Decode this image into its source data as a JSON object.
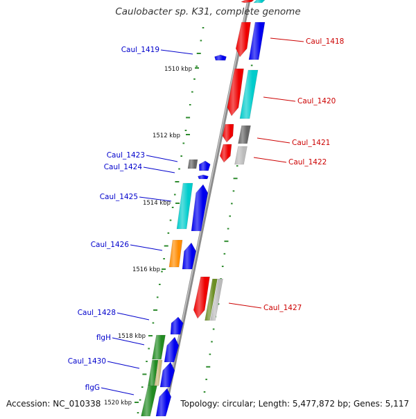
{
  "title": "Caulobacter sp. K31, complete genome",
  "accession": "Accession: NC_010338",
  "summary": "Topology: circular; Length: 5,477,872 bp; Genes: 5,117",
  "kbp_labels": [
    {
      "text": "1510 kbp",
      "kbp": 1510
    },
    {
      "text": "1512 kbp",
      "kbp": 1512
    },
    {
      "text": "1514 kbp",
      "kbp": 1514
    },
    {
      "text": "1516 kbp",
      "kbp": 1516
    },
    {
      "text": "1518 kbp",
      "kbp": 1518
    },
    {
      "text": "1520 kbp",
      "kbp": 1520
    }
  ],
  "gene_labels": [
    {
      "text": "Caul_1418",
      "strand": "reverse",
      "color": "#cc0000"
    },
    {
      "text": "Caul_1419",
      "strand": "forward",
      "color": "#0000cc"
    },
    {
      "text": "Caul_1420",
      "strand": "reverse",
      "color": "#cc0000"
    },
    {
      "text": "Caul_1421",
      "strand": "reverse",
      "color": "#cc0000"
    },
    {
      "text": "Caul_1422",
      "strand": "reverse",
      "color": "#cc0000"
    },
    {
      "text": "Caul_1423",
      "strand": "forward",
      "color": "#0000cc"
    },
    {
      "text": "Caul_1424",
      "strand": "forward",
      "color": "#0000cc"
    },
    {
      "text": "Caul_1425",
      "strand": "forward",
      "color": "#0000cc"
    },
    {
      "text": "Caul_1426",
      "strand": "forward",
      "color": "#0000cc"
    },
    {
      "text": "Caul_1427",
      "strand": "reverse",
      "color": "#cc0000"
    },
    {
      "text": "Caul_1428",
      "strand": "forward",
      "color": "#0000cc"
    },
    {
      "text": "flgH",
      "strand": "forward",
      "color": "#0000cc"
    },
    {
      "text": "Caul_1430",
      "strand": "forward",
      "color": "#0000cc"
    },
    {
      "text": "flgG",
      "strand": "forward",
      "color": "#0000cc"
    }
  ],
  "colors": {
    "backbone": "#8c8c8c",
    "forward_label": "#0000cc",
    "reverse_label": "#cc0000",
    "tick": "#2e8b2e",
    "cds_forward": "#0000ee",
    "cds_reverse": "#ee0000",
    "cog_cyan": "#00cccc",
    "cog_gray": "#666666",
    "cog_lightgray": "#bbbbbb",
    "cog_orange": "#ff8c00",
    "cog_olive": "#6b8e23",
    "cog_green": "#228b22",
    "cog_tan": "#c8b878"
  }
}
